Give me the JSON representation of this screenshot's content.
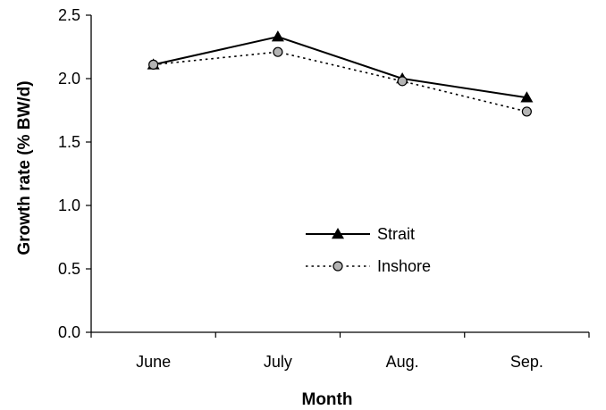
{
  "chart_data": {
    "type": "line",
    "categories": [
      "June",
      "July",
      "Aug.",
      "Sep."
    ],
    "series": [
      {
        "name": "Strait",
        "values": [
          2.11,
          2.33,
          2.0,
          1.85
        ],
        "line_style": "solid",
        "marker": "triangle"
      },
      {
        "name": "Inshore",
        "values": [
          2.11,
          2.21,
          1.98,
          1.74
        ],
        "line_style": "dotted",
        "marker": "circle"
      }
    ],
    "title": "",
    "xlabel": "Month",
    "ylabel": "Growth rate (% BW/d)",
    "ylim": [
      0,
      2.5
    ],
    "yticks": [
      "0.0",
      "0.5",
      "1.0",
      "1.5",
      "2.0",
      "2.5"
    ],
    "grid": false,
    "legend_position": "center"
  }
}
